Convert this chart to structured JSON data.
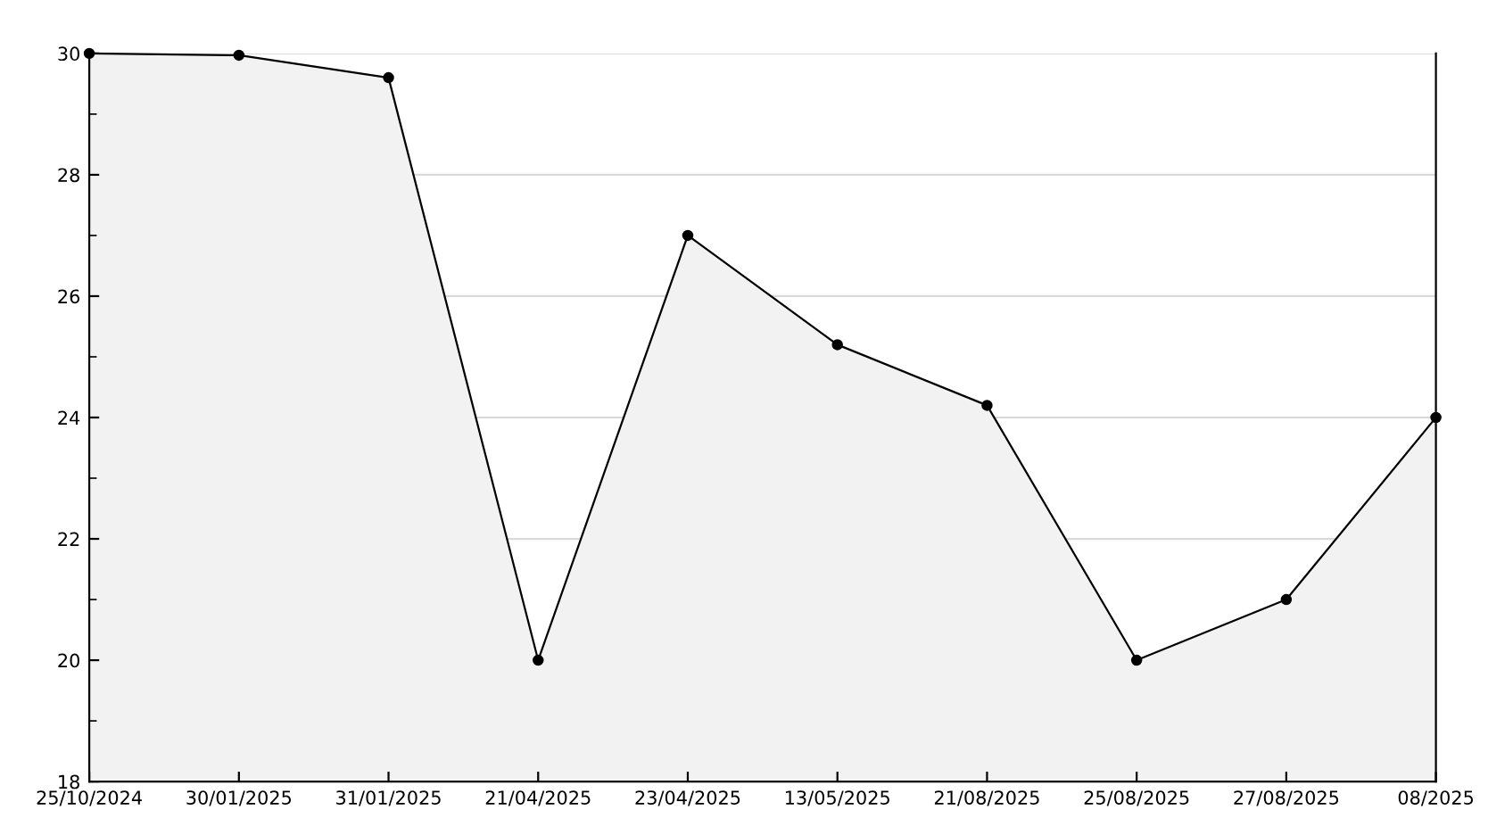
{
  "chart_data": {
    "type": "area",
    "categories": [
      "25/10/2024",
      "30/01/2025",
      "31/01/2025",
      "21/04/2025",
      "23/04/2025",
      "13/05/2025",
      "21/08/2025",
      "25/08/2025",
      "27/08/2025",
      "08/2025"
    ],
    "series": [
      {
        "color": "#f2f2f2",
        "values": [
          30,
          29.97,
          29.6,
          20,
          27,
          25.2,
          24.2,
          20,
          21,
          24
        ]
      }
    ],
    "ylim": [
      18,
      30
    ],
    "yticks": [
      18,
      {
        "value": 19,
        "label": null
      },
      20,
      {
        "value": 21,
        "label": null
      },
      22,
      {
        "value": 23,
        "label": null
      },
      24,
      {
        "value": 25,
        "label": null
      },
      26,
      {
        "value": 27,
        "label": null
      },
      28,
      {
        "value": 29,
        "label": null
      },
      30
    ],
    "grid": "y",
    "marker": "circle",
    "line_style": "solid"
  }
}
